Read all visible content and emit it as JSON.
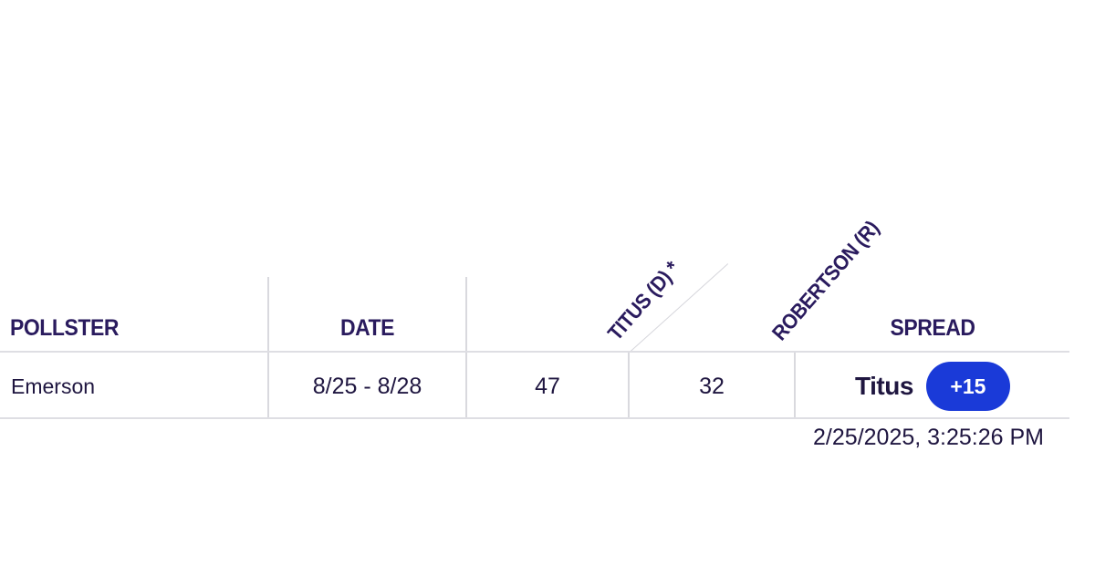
{
  "table": {
    "headers": {
      "pollster": "POLLSTER",
      "date": "DATE",
      "candidate_1": "TITUS (D) *",
      "candidate_2": "ROBERTSON (R)",
      "spread": "SPREAD"
    },
    "rows": [
      {
        "pollster": "Emerson",
        "date": "8/25 - 8/28",
        "candidate_1_value": "47",
        "candidate_2_value": "32",
        "spread_leader": "Titus",
        "spread_value": "+15"
      }
    ]
  },
  "timestamp": "2/25/2025, 3:25:26 PM",
  "colors": {
    "header_text": "#2a1b5e",
    "body_text": "#1f1640",
    "badge_bg": "#1a3ad8",
    "badge_text": "#ffffff",
    "grid_lines": "#d9d9de"
  }
}
